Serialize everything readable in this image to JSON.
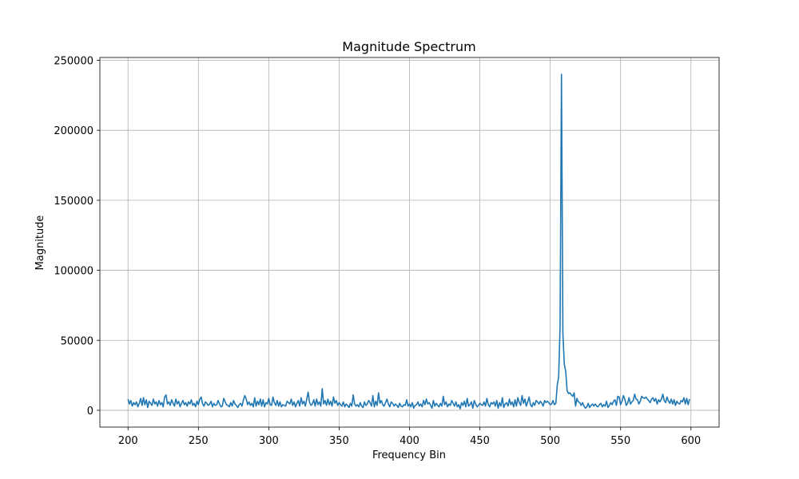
{
  "chart_data": {
    "type": "line",
    "title": "Magnitude Spectrum",
    "xlabel": "Frequency Bin",
    "ylabel": "Magnitude",
    "xlim": [
      180,
      620
    ],
    "ylim": [
      -12000,
      252000
    ],
    "xticks": [
      200,
      250,
      300,
      350,
      400,
      450,
      500,
      550,
      600
    ],
    "yticks": [
      0,
      50000,
      100000,
      150000,
      200000,
      250000
    ],
    "grid": true,
    "series": [
      {
        "color": "#1f77b4",
        "x_start": 200,
        "x_end": 599,
        "values": [
          8000,
          4500,
          7000,
          3000,
          5500,
          4000,
          6000,
          2500,
          5000,
          8500,
          3500,
          9000,
          4000,
          7500,
          2000,
          6500,
          5000,
          3500,
          8000,
          4500,
          6000,
          3000,
          7000,
          4000,
          5500,
          2500,
          9500,
          11000,
          4500,
          6000,
          3500,
          7500,
          5000,
          3000,
          8000,
          4500,
          6500,
          2500,
          5000,
          7000,
          4000,
          5500,
          3000,
          6000,
          4500,
          7500,
          3500,
          5000,
          2500,
          6500,
          4000,
          8000,
          9500,
          4500,
          3000,
          6000,
          5000,
          3500,
          4500,
          6500,
          2500,
          5000,
          3500,
          4000,
          7000,
          4500,
          2500,
          3000,
          8500,
          6000,
          4000,
          3500,
          2500,
          5500,
          3000,
          7000,
          4500,
          3500,
          2000,
          4000,
          5000,
          3000,
          7500,
          10500,
          8000,
          4000,
          6000,
          3500,
          5000,
          2500,
          9000,
          3000,
          6500,
          4000,
          8000,
          3000,
          7500,
          2500,
          5500,
          4500,
          8500,
          4000,
          3500,
          9500,
          5500,
          3500,
          7000,
          3000,
          6000,
          2500,
          4000,
          3500,
          3000,
          6500,
          5500,
          4500,
          8000,
          3500,
          6000,
          2500,
          5000,
          7000,
          3000,
          9000,
          4500,
          6500,
          3000,
          8000,
          13000,
          5500,
          3500,
          4500,
          7500,
          3000,
          8000,
          4000,
          6000,
          3000,
          15500,
          4500,
          7000,
          3500,
          8000,
          4000,
          6500,
          3000,
          9500,
          5000,
          7000,
          3500,
          5500,
          4000,
          3000,
          6000,
          2500,
          4500,
          3500,
          2000,
          5000,
          3000,
          11000,
          4500,
          3000,
          4000,
          2500,
          5500,
          3000,
          2000,
          6000,
          3500,
          4500,
          7000,
          5500,
          3000,
          10500,
          2500,
          6500,
          3500,
          12500,
          5000,
          7000,
          4000,
          3000,
          5500,
          8000,
          4500,
          2500,
          6000,
          5000,
          3000,
          4500,
          3500,
          2000,
          5000,
          3000,
          2500,
          4000,
          3500,
          7500,
          3000,
          4500,
          2500,
          5500,
          1500,
          3500,
          4000,
          6000,
          3000,
          4500,
          2500,
          7000,
          4000,
          8000,
          4500,
          5500,
          3500,
          1500,
          7000,
          3000,
          5000,
          3500,
          2500,
          5000,
          3000,
          10000,
          4000,
          6000,
          2500,
          4500,
          3500,
          7000,
          5000,
          3000,
          6000,
          2500,
          4000,
          1000,
          5500,
          3500,
          6500,
          2500,
          8500,
          3000,
          4000,
          6000,
          1500,
          7000,
          4500,
          2500,
          3500,
          5000,
          4000,
          3500,
          6000,
          3000,
          8500,
          4000,
          2500,
          5500,
          4500,
          6000,
          3000,
          7000,
          1500,
          5500,
          3000,
          9000,
          2000,
          4500,
          5500,
          3000,
          8000,
          4000,
          6000,
          2500,
          7500,
          3000,
          9000,
          5500,
          3500,
          10500,
          5000,
          8000,
          3000,
          6000,
          9500,
          4000,
          2500,
          5500,
          3500,
          7000,
          6000,
          4500,
          6500,
          5000,
          3000,
          7000,
          5500,
          6500,
          5500,
          4000,
          4500,
          7000,
          4000,
          5000,
          18000,
          24000,
          60000,
          240000,
          55000,
          33000,
          28000,
          14000,
          12000,
          12500,
          11000,
          10000,
          12500,
          3000,
          8500,
          6000,
          5500,
          3500,
          5500,
          3000,
          1500,
          2500,
          5000,
          2000,
          3500,
          4500,
          3000,
          4500,
          3000,
          2500,
          4000,
          5000,
          2500,
          4000,
          3000,
          6500,
          2000,
          3500,
          5500,
          4000,
          6500,
          7500,
          3500,
          10000,
          9500,
          4000,
          6500,
          10500,
          8000,
          3500,
          5000,
          9000,
          4500,
          6000,
          7000,
          11500,
          8000,
          7500,
          4500,
          6500,
          10000,
          9000,
          8500,
          9500,
          8000,
          7000,
          5500,
          8000,
          9000,
          6500,
          8500,
          4500,
          7500,
          6000,
          8000,
          11500,
          7000,
          5500,
          9500,
          6500,
          5000,
          8000,
          4500,
          7500,
          3500,
          6500,
          5000,
          4500,
          7000,
          6000,
          9000,
          4500,
          8500,
          4000,
          8000
        ]
      }
    ]
  }
}
